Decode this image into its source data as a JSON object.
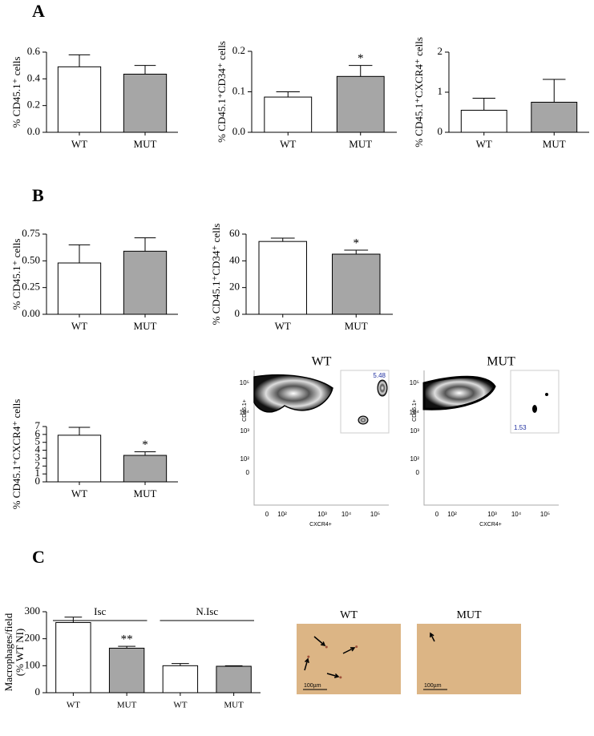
{
  "panel_labels": [
    "A",
    "B",
    "C"
  ],
  "chart_data": [
    {
      "type": "bar",
      "ylabel": "% CD45.1⁺ cells",
      "categories": [
        "WT",
        "MUT"
      ],
      "values": [
        0.49,
        0.435
      ],
      "errors": [
        0.09,
        0.065
      ],
      "colors": [
        "#ffffff",
        "#a6a6a6"
      ],
      "ylim": [
        0,
        0.6
      ],
      "yticks": [
        {
          "value": 0,
          "label": "0.0"
        },
        0.2,
        0.4,
        0.6
      ]
    },
    {
      "type": "bar",
      "ylabel": "% CD45.1⁺CD34⁺ cells",
      "categories": [
        "WT",
        "MUT"
      ],
      "values": [
        0.087,
        0.138
      ],
      "errors": [
        0.013,
        0.027
      ],
      "significance": [
        null,
        "*"
      ],
      "colors": [
        "#ffffff",
        "#a6a6a6"
      ],
      "ylim": [
        0,
        0.2
      ],
      "yticks": [
        {
          "value": 0,
          "label": "0.0"
        },
        0.1,
        0.2
      ]
    },
    {
      "type": "bar",
      "ylabel": "% CD45.1⁺CXCR4⁺ cells",
      "categories": [
        "WT",
        "MUT"
      ],
      "values": [
        0.55,
        0.75
      ],
      "errors": [
        0.3,
        0.57
      ],
      "colors": [
        "#ffffff",
        "#a6a6a6"
      ],
      "ylim": [
        0,
        2
      ],
      "yticks": [
        0,
        1,
        2
      ]
    },
    {
      "type": "bar",
      "ylabel": "% CD45.1⁺ cells",
      "categories": [
        "WT",
        "MUT"
      ],
      "values": [
        0.48,
        0.59
      ],
      "errors": [
        0.17,
        0.125
      ],
      "colors": [
        "#ffffff",
        "#a6a6a6"
      ],
      "ylim": [
        0,
        0.75
      ],
      "yticks": [
        {
          "value": 0,
          "label": "0.00"
        },
        0.25,
        {
          "value": 0.5,
          "label": "0.50"
        },
        0.75
      ]
    },
    {
      "type": "bar",
      "ylabel": "% CD45.1⁺CD34⁺ cells",
      "categories": [
        "WT",
        "MUT"
      ],
      "values": [
        54.5,
        45
      ],
      "errors": [
        2.5,
        3
      ],
      "significance": [
        null,
        "*"
      ],
      "colors": [
        "#ffffff",
        "#a6a6a6"
      ],
      "ylim": [
        0,
        60
      ],
      "yticks": [
        0,
        20,
        40,
        60
      ]
    },
    {
      "type": "bar",
      "ylabel": "% CD45.1⁺CXCR4⁺ cells",
      "categories": [
        "WT",
        "MUT"
      ],
      "values": [
        5.9,
        3.35
      ],
      "errors": [
        1.0,
        0.45
      ],
      "significance": [
        null,
        "*"
      ],
      "colors": [
        "#ffffff",
        "#a6a6a6"
      ],
      "ylim": [
        0,
        7
      ],
      "yticks": [
        0,
        1,
        2,
        3,
        4,
        5,
        6,
        7
      ]
    },
    {
      "type": "bar",
      "ylabel": [
        "Macrophages/field",
        "(% WT NI)"
      ],
      "categories": [
        "WT",
        "MUT",
        "WT",
        "MUT"
      ],
      "groups": [
        "Isc",
        "N.Isc"
      ],
      "values": [
        260,
        165,
        100,
        98
      ],
      "errors": [
        20,
        7,
        8,
        2
      ],
      "significance": [
        null,
        "**",
        null,
        null
      ],
      "colors": [
        "#ffffff",
        "#a6a6a6",
        "#ffffff",
        "#a6a6a6"
      ],
      "ylim": [
        0,
        300
      ],
      "yticks": [
        0,
        100,
        200,
        300
      ]
    }
  ],
  "flow_plots": {
    "x_label": "CXCR4+",
    "y_label": "CD45.1+",
    "xticks": [
      "0",
      "10²",
      "10³",
      "10⁴",
      "10⁵"
    ],
    "yticks": [
      "10⁵",
      "10⁴",
      "10³",
      "10²",
      "0"
    ],
    "panels": [
      {
        "title": "WT",
        "gate": 5.48
      },
      {
        "title": "MUT",
        "gate": 1.53
      }
    ]
  },
  "micrographs": {
    "scale": "100µm",
    "panels": [
      "WT",
      "MUT"
    ]
  }
}
